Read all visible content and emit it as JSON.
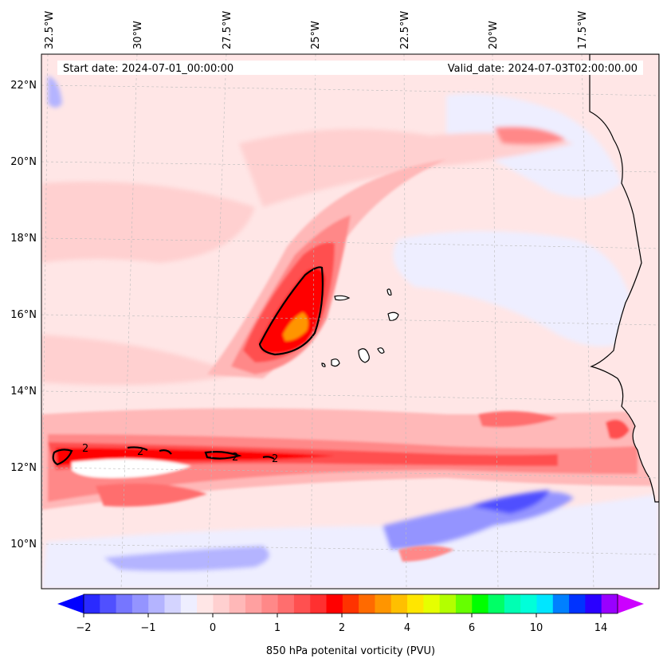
{
  "map": {
    "start_date": "Start date: 2024-07-01_00:00:00",
    "valid_date": "Valid_date: 2024-07-03T02:00:00.00",
    "lon_labels": [
      "32.5°W",
      "30°W",
      "27.5°W",
      "25°W",
      "22.5°W",
      "20°W",
      "17.5°W"
    ],
    "lat_labels": [
      "22°N",
      "20°N",
      "18°N",
      "16°N",
      "14°N",
      "12°N",
      "10°N"
    ],
    "contour_labels": [
      "2",
      "2",
      "2",
      "2"
    ]
  },
  "colorbar": {
    "label": "850 hPa potenital vorticity (PVU)",
    "tick_labels": [
      "−2",
      "−1",
      "0",
      "1",
      "2",
      "4",
      "6",
      "10",
      "14"
    ],
    "colors": [
      "#0000ff",
      "#2a2aff",
      "#5050ff",
      "#7676ff",
      "#9494ff",
      "#b4b4ff",
      "#d4d4ff",
      "#eeeeff",
      "#ffe6e6",
      "#ffd0d0",
      "#ffb8b8",
      "#ffa0a0",
      "#ff8888",
      "#ff6e6e",
      "#ff5050",
      "#ff3030",
      "#ff0000",
      "#ff3300",
      "#ff6a00",
      "#ff9500",
      "#ffbf00",
      "#ffe600",
      "#e6ff00",
      "#b3ff00",
      "#66ff00",
      "#00ff00",
      "#00ff66",
      "#00ffb3",
      "#00ffd9",
      "#00e6ff",
      "#0080ff",
      "#0033ff",
      "#2a00ff",
      "#9900ff",
      "#cc00ff"
    ]
  }
}
